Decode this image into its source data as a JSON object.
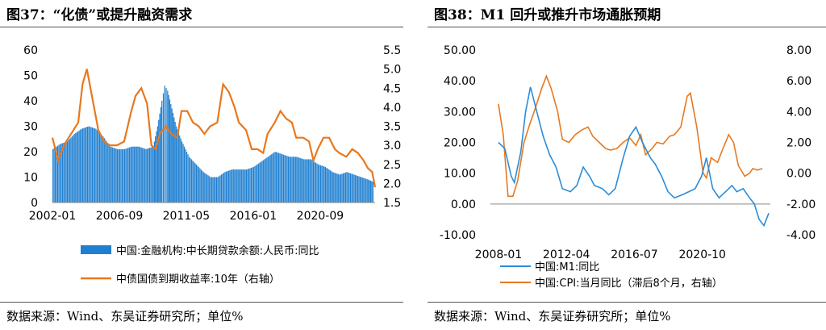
{
  "left": {
    "title": "图37：“化债”或提升融资需求",
    "source": "数据来源：Wind、东吴证券研究所；单位%",
    "chart_data": {
      "type": "bar+line",
      "x_ticks": [
        "2002-01",
        "2006-09",
        "2011-05",
        "2016-01",
        "2020-09"
      ],
      "x_range": [
        2002.0,
        2024.5
      ],
      "y_left": {
        "range": [
          0,
          60
        ],
        "ticks": [
          "0",
          "10",
          "20",
          "30",
          "40",
          "50",
          "60"
        ]
      },
      "y_right": {
        "range": [
          1.5,
          5.5
        ],
        "ticks": [
          "1.5",
          "2.0",
          "2.5",
          "3.0",
          "3.5",
          "4.0",
          "4.5",
          "5.0",
          "5.5"
        ]
      },
      "series": [
        {
          "name": "中国:金融机构:中长期贷款余额:人民币:同比",
          "axis": "left",
          "kind": "bar",
          "color": "#1f7fd0",
          "points": [
            [
              2002.0,
              21
            ],
            [
              2002.5,
              23
            ],
            [
              2003.0,
              24
            ],
            [
              2003.5,
              27
            ],
            [
              2004.0,
              29
            ],
            [
              2004.5,
              30
            ],
            [
              2005.0,
              29
            ],
            [
              2005.5,
              26
            ],
            [
              2006.0,
              22
            ],
            [
              2006.5,
              21
            ],
            [
              2007.0,
              21
            ],
            [
              2007.5,
              22
            ],
            [
              2008.0,
              22
            ],
            [
              2008.5,
              21
            ],
            [
              2009.0,
              22
            ],
            [
              2009.3,
              30
            ],
            [
              2009.6,
              40
            ],
            [
              2009.8,
              46
            ],
            [
              2010.0,
              44
            ],
            [
              2010.3,
              37
            ],
            [
              2010.6,
              30
            ],
            [
              2011.0,
              24
            ],
            [
              2011.5,
              18
            ],
            [
              2012.0,
              15
            ],
            [
              2012.5,
              12
            ],
            [
              2013.0,
              10
            ],
            [
              2013.5,
              10
            ],
            [
              2014.0,
              12
            ],
            [
              2014.5,
              13
            ],
            [
              2015.0,
              13
            ],
            [
              2015.5,
              13
            ],
            [
              2016.0,
              14
            ],
            [
              2016.5,
              16
            ],
            [
              2017.0,
              18
            ],
            [
              2017.5,
              20
            ],
            [
              2018.0,
              19
            ],
            [
              2018.5,
              18
            ],
            [
              2019.0,
              18
            ],
            [
              2019.5,
              17
            ],
            [
              2020.0,
              17
            ],
            [
              2020.5,
              15
            ],
            [
              2021.0,
              14
            ],
            [
              2021.5,
              12
            ],
            [
              2022.0,
              11
            ],
            [
              2022.5,
              12
            ],
            [
              2023.0,
              11
            ],
            [
              2023.5,
              10
            ],
            [
              2024.0,
              9
            ],
            [
              2024.4,
              8
            ]
          ]
        },
        {
          "name": "中债国债到期收益率:10年（右轴）",
          "axis": "right",
          "kind": "line",
          "color": "#e8781e",
          "points": [
            [
              2002.0,
              3.2
            ],
            [
              2002.4,
              2.6
            ],
            [
              2002.8,
              3.0
            ],
            [
              2003.3,
              3.3
            ],
            [
              2003.8,
              3.6
            ],
            [
              2004.1,
              4.6
            ],
            [
              2004.4,
              5.0
            ],
            [
              2004.8,
              4.2
            ],
            [
              2005.2,
              3.4
            ],
            [
              2005.6,
              3.1
            ],
            [
              2006.0,
              3.0
            ],
            [
              2006.5,
              3.0
            ],
            [
              2007.0,
              3.1
            ],
            [
              2007.5,
              3.9
            ],
            [
              2007.8,
              4.3
            ],
            [
              2008.2,
              4.5
            ],
            [
              2008.6,
              4.1
            ],
            [
              2008.9,
              3.0
            ],
            [
              2009.2,
              2.9
            ],
            [
              2009.5,
              3.3
            ],
            [
              2009.9,
              3.5
            ],
            [
              2010.3,
              3.3
            ],
            [
              2010.7,
              3.2
            ],
            [
              2011.0,
              3.9
            ],
            [
              2011.4,
              3.9
            ],
            [
              2011.8,
              3.6
            ],
            [
              2012.2,
              3.5
            ],
            [
              2012.6,
              3.3
            ],
            [
              2013.0,
              3.5
            ],
            [
              2013.5,
              3.6
            ],
            [
              2013.9,
              4.6
            ],
            [
              2014.3,
              4.4
            ],
            [
              2014.7,
              4.0
            ],
            [
              2015.0,
              3.6
            ],
            [
              2015.5,
              3.4
            ],
            [
              2015.9,
              2.9
            ],
            [
              2016.3,
              2.9
            ],
            [
              2016.7,
              2.8
            ],
            [
              2017.0,
              3.3
            ],
            [
              2017.5,
              3.6
            ],
            [
              2017.9,
              3.9
            ],
            [
              2018.3,
              3.7
            ],
            [
              2018.7,
              3.6
            ],
            [
              2019.0,
              3.2
            ],
            [
              2019.5,
              3.2
            ],
            [
              2019.9,
              3.1
            ],
            [
              2020.2,
              2.6
            ],
            [
              2020.5,
              2.9
            ],
            [
              2020.9,
              3.2
            ],
            [
              2021.3,
              3.2
            ],
            [
              2021.7,
              2.9
            ],
            [
              2022.0,
              2.8
            ],
            [
              2022.5,
              2.7
            ],
            [
              2022.9,
              2.9
            ],
            [
              2023.3,
              2.8
            ],
            [
              2023.7,
              2.6
            ],
            [
              2024.0,
              2.4
            ],
            [
              2024.3,
              2.3
            ],
            [
              2024.5,
              1.9
            ]
          ]
        }
      ]
    }
  },
  "right": {
    "title": "图38：M1 回升或推升市场通胀预期",
    "source": "数据来源：Wind、东吴证券研究所；单位%",
    "chart_data": {
      "type": "line",
      "x_ticks": [
        "2008-01",
        "2012-04",
        "2016-07",
        "2020-10"
      ],
      "x_range": [
        2007.5,
        2025.0
      ],
      "y_left": {
        "range": [
          -10,
          50
        ],
        "ticks": [
          "-10.00",
          "0.00",
          "10.00",
          "20.00",
          "30.00",
          "40.00",
          "50.00"
        ]
      },
      "y_right": {
        "range": [
          -4,
          8
        ],
        "ticks": [
          "-4.00",
          "-2.00",
          "0.00",
          "2.00",
          "4.00",
          "6.00",
          "8.00"
        ]
      },
      "series": [
        {
          "name": "中国:M1:同比",
          "axis": "left",
          "kind": "line",
          "color": "#2b8cd8",
          "points": [
            [
              2008.0,
              20
            ],
            [
              2008.4,
              18
            ],
            [
              2008.8,
              9
            ],
            [
              2009.0,
              7
            ],
            [
              2009.4,
              17
            ],
            [
              2009.7,
              30
            ],
            [
              2010.0,
              38
            ],
            [
              2010.3,
              32
            ],
            [
              2010.8,
              22
            ],
            [
              2011.2,
              16
            ],
            [
              2011.6,
              12
            ],
            [
              2012.0,
              5
            ],
            [
              2012.5,
              4
            ],
            [
              2012.9,
              6
            ],
            [
              2013.3,
              12
            ],
            [
              2013.7,
              9
            ],
            [
              2014.0,
              6
            ],
            [
              2014.5,
              5
            ],
            [
              2014.9,
              3
            ],
            [
              2015.3,
              5
            ],
            [
              2015.8,
              15
            ],
            [
              2016.2,
              22
            ],
            [
              2016.6,
              25
            ],
            [
              2017.0,
              20
            ],
            [
              2017.5,
              15
            ],
            [
              2017.8,
              13
            ],
            [
              2018.2,
              9
            ],
            [
              2018.6,
              4
            ],
            [
              2019.0,
              2
            ],
            [
              2019.5,
              3
            ],
            [
              2019.9,
              4
            ],
            [
              2020.3,
              5
            ],
            [
              2020.7,
              9
            ],
            [
              2021.0,
              15
            ],
            [
              2021.4,
              5
            ],
            [
              2021.8,
              2
            ],
            [
              2022.2,
              4
            ],
            [
              2022.6,
              6
            ],
            [
              2022.9,
              4
            ],
            [
              2023.3,
              5
            ],
            [
              2023.7,
              2
            ],
            [
              2024.0,
              0
            ],
            [
              2024.3,
              -5
            ],
            [
              2024.6,
              -7
            ],
            [
              2024.9,
              -3
            ]
          ]
        },
        {
          "name": "中国:CPI:当月同比（滞后8个月，右轴）",
          "axis": "right",
          "kind": "line",
          "color": "#e8781e",
          "points": [
            [
              2008.0,
              4.5
            ],
            [
              2008.3,
              2.5
            ],
            [
              2008.6,
              -1.5
            ],
            [
              2008.9,
              -1.5
            ],
            [
              2009.2,
              -0.5
            ],
            [
              2009.6,
              2.0
            ],
            [
              2009.9,
              3.0
            ],
            [
              2010.3,
              4.2
            ],
            [
              2010.7,
              5.5
            ],
            [
              2011.0,
              6.3
            ],
            [
              2011.3,
              5.5
            ],
            [
              2011.7,
              4.0
            ],
            [
              2012.0,
              2.2
            ],
            [
              2012.4,
              2.0
            ],
            [
              2012.8,
              2.5
            ],
            [
              2013.2,
              2.8
            ],
            [
              2013.6,
              3.0
            ],
            [
              2013.9,
              2.4
            ],
            [
              2014.3,
              2.0
            ],
            [
              2014.7,
              1.6
            ],
            [
              2015.0,
              1.5
            ],
            [
              2015.4,
              1.6
            ],
            [
              2015.8,
              2.0
            ],
            [
              2016.2,
              2.3
            ],
            [
              2016.6,
              1.8
            ],
            [
              2016.9,
              2.5
            ],
            [
              2017.2,
              1.2
            ],
            [
              2017.6,
              1.6
            ],
            [
              2017.9,
              2.0
            ],
            [
              2018.3,
              1.9
            ],
            [
              2018.7,
              2.4
            ],
            [
              2019.0,
              2.5
            ],
            [
              2019.4,
              3.0
            ],
            [
              2019.8,
              5.0
            ],
            [
              2020.0,
              5.2
            ],
            [
              2020.4,
              3.0
            ],
            [
              2020.8,
              0.0
            ],
            [
              2021.0,
              -0.3
            ],
            [
              2021.3,
              1.0
            ],
            [
              2021.7,
              0.7
            ],
            [
              2022.0,
              1.5
            ],
            [
              2022.4,
              2.5
            ],
            [
              2022.7,
              2.0
            ],
            [
              2023.0,
              0.5
            ],
            [
              2023.4,
              -0.2
            ],
            [
              2023.7,
              0.0
            ],
            [
              2023.9,
              0.3
            ],
            [
              2024.2,
              0.2
            ],
            [
              2024.5,
              0.3
            ]
          ]
        }
      ]
    }
  }
}
